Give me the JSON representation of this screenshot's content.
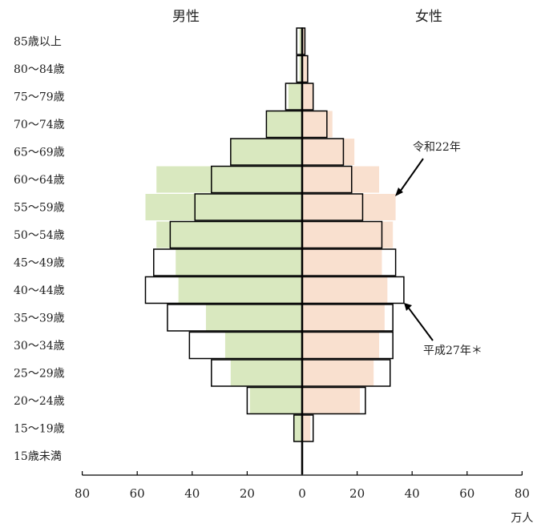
{
  "chart_data": {
    "type": "bar",
    "orientation": "horizontal-population-pyramid",
    "header_left": "男性",
    "header_right": "女性",
    "categories": [
      "85歳以上",
      "80～84歳",
      "75～79歳",
      "70～74歳",
      "65～69歳",
      "60～64歳",
      "55～59歳",
      "50～54歳",
      "45～49歳",
      "40～44歳",
      "35～39歳",
      "30～34歳",
      "25～29歳",
      "20～24歳",
      "15～19歳",
      "15歳未満"
    ],
    "x_ticks": [
      80,
      60,
      40,
      20,
      0,
      20,
      40,
      60,
      80
    ],
    "x_unit": "万人",
    "xlim": [
      -80,
      80
    ],
    "series": [
      {
        "name": "令和22年",
        "color_male": "#d9e8bf",
        "color_female": "#f9e0cf",
        "male": [
          1,
          1,
          5,
          13,
          26,
          53,
          57,
          53,
          46,
          45,
          35,
          28,
          26,
          19,
          3,
          0
        ],
        "female": [
          1,
          2,
          4,
          11,
          19,
          28,
          34,
          33,
          29,
          31,
          30,
          28,
          26,
          21,
          3,
          0
        ]
      },
      {
        "name": "平成27年＊",
        "color": "#ffffff",
        "male": [
          2,
          2,
          6,
          13,
          26,
          33,
          39,
          48,
          54,
          57,
          49,
          41,
          33,
          20,
          3,
          0
        ],
        "female": [
          1,
          2,
          4,
          9,
          15,
          18,
          22,
          29,
          34,
          37,
          33,
          33,
          32,
          23,
          4,
          0
        ]
      }
    ]
  }
}
